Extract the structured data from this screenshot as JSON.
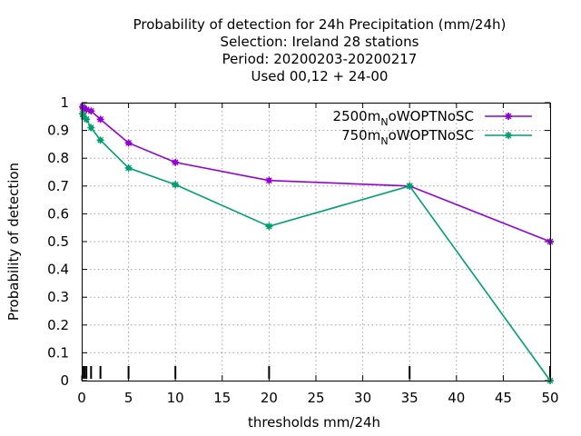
{
  "chart_data": {
    "type": "line",
    "title_lines": [
      "Probability of detection  for 24h Precipitation (mm/24h)",
      "Selection: Ireland      28 stations",
      "Period: 20200203-20200217",
      "Used  00,12  + 24-00"
    ],
    "xlabel": "thresholds mm/24h",
    "ylabel": "Probability of detection",
    "xlim": [
      0,
      50
    ],
    "ylim": [
      0,
      1
    ],
    "xticks": [
      0,
      5,
      10,
      15,
      20,
      25,
      30,
      35,
      40,
      45,
      50
    ],
    "yticks": [
      0,
      0.1,
      0.2,
      0.3,
      0.4,
      0.5,
      0.6,
      0.7,
      0.8,
      0.9,
      1
    ],
    "ytick_labels": [
      "0",
      "0.1",
      "0.2",
      "0.3",
      "0.4",
      "0.5",
      "0.6",
      "0.7",
      "0.8",
      "0.9",
      "1"
    ],
    "grid": true,
    "legend_position": "top-right",
    "rug_x": [
      0.1,
      0.3,
      0.5,
      1,
      2,
      5,
      10,
      20,
      35,
      50
    ],
    "series": [
      {
        "name_main": "2500m",
        "name_sub": "N",
        "name_tail": "oWOPTNoSC",
        "color": "#9400d3",
        "x": [
          0.1,
          0.2,
          0.5,
          1,
          2,
          5,
          10,
          20,
          35,
          50
        ],
        "y": [
          0.985,
          0.98,
          0.975,
          0.97,
          0.94,
          0.855,
          0.785,
          0.72,
          0.7,
          0.5
        ]
      },
      {
        "name_main": "750m",
        "name_sub": "N",
        "name_tail": "oWOPTNoSC",
        "color": "#009e73",
        "x": [
          0.1,
          0.2,
          0.5,
          1,
          2,
          5,
          10,
          20,
          35,
          50
        ],
        "y": [
          0.96,
          0.95,
          0.94,
          0.91,
          0.865,
          0.765,
          0.705,
          0.555,
          0.7,
          0.0
        ]
      }
    ]
  }
}
